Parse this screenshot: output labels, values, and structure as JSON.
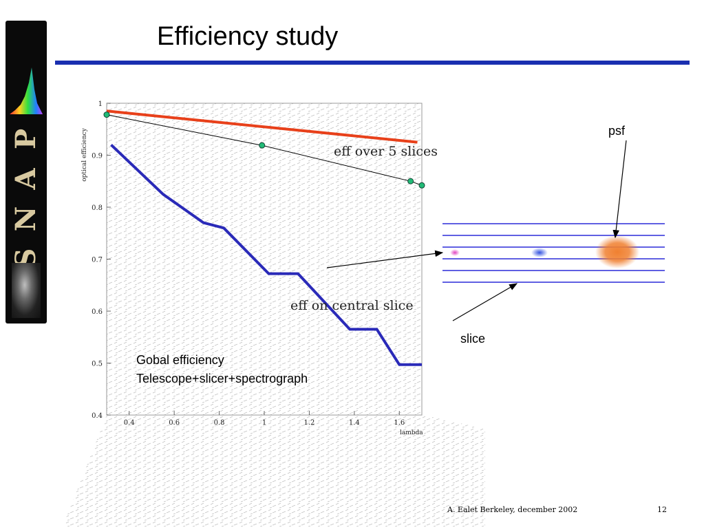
{
  "slide": {
    "title": "Efficiency study",
    "footer_author": "A. Ealet  Berkeley, december 2002",
    "page_number": "12",
    "logo_letters": [
      "S",
      "N",
      "A",
      "P"
    ],
    "accent_color": "#1a2fb0"
  },
  "chart_data": [
    {
      "type": "line",
      "xlabel": "lambda",
      "ylabel": "optical efficiency",
      "xlim": [
        0.3,
        1.7
      ],
      "ylim": [
        0.4,
        1.0
      ],
      "xticks": [
        0.4,
        0.6,
        0.8,
        1,
        1.2,
        1.4,
        1.6
      ],
      "xtick_labels": [
        "0.4",
        "0.6",
        "0.8",
        "1",
        "1.2",
        "1.4",
        "1.6"
      ],
      "yticks": [
        0.4,
        0.5,
        0.6,
        0.7,
        0.8,
        0.9,
        1.0
      ],
      "ytick_labels": [
        "0.4",
        "0.5",
        "0.6",
        "0.7",
        "0.8",
        "0.9",
        "1"
      ],
      "series": [
        {
          "color": "#e8401a",
          "x": [
            0.3,
            1.68
          ],
          "y": [
            0.985,
            0.925
          ]
        },
        {
          "color": "#000000",
          "markers": true,
          "x": [
            0.3,
            0.99,
            1.65,
            1.7
          ],
          "y": [
            0.978,
            0.919,
            0.85,
            0.842
          ]
        },
        {
          "color": "#2a2ab8",
          "x": [
            0.32,
            0.55,
            0.73,
            0.82,
            1.02,
            1.15,
            1.38,
            1.5,
            1.6,
            1.7
          ],
          "y": [
            0.92,
            0.825,
            0.77,
            0.76,
            0.672,
            0.672,
            0.565,
            0.565,
            0.497,
            0.497
          ]
        }
      ],
      "annotations": {
        "eff_over": "eff over 5 slices",
        "eff_central": "eff on central slice",
        "global_line1": "Gobal efficiency",
        "global_line2": "Telescope+slicer+spectrograph"
      }
    },
    {
      "type": "diagram",
      "slice_line_count": 6,
      "labels": {
        "psf": "psf",
        "slice": "slice"
      },
      "spot_colors": [
        "#e040c0",
        "#3050e0",
        "#f08030"
      ]
    }
  ]
}
